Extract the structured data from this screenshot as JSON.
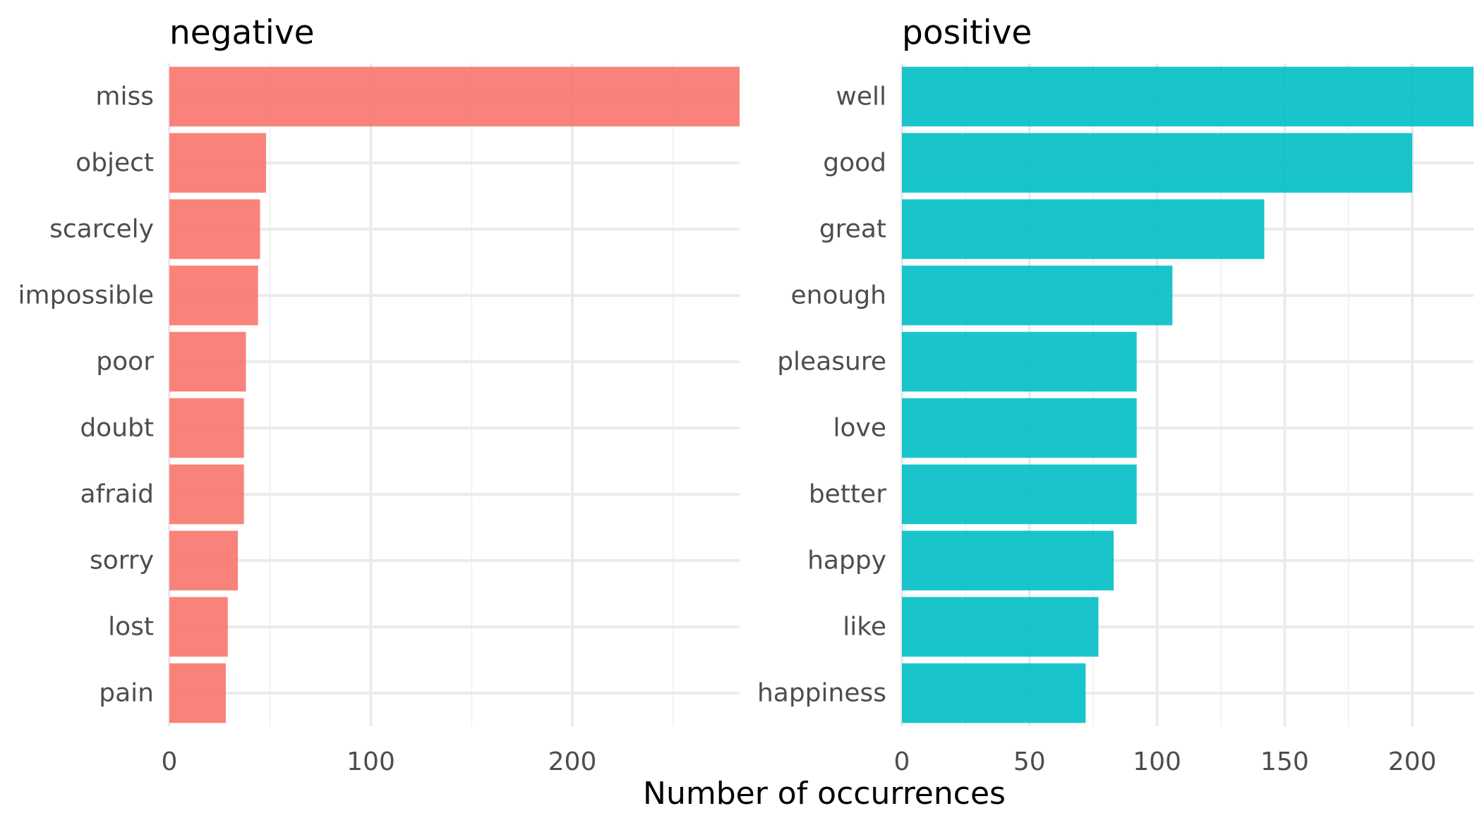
{
  "chart_data": {
    "type": "bar",
    "orientation": "horizontal",
    "grid": true,
    "facets_share_axes": false,
    "xlabel": "Number of occurrences",
    "colors": {
      "negative": "#F8766D",
      "positive": "#00BFC4"
    },
    "panels": [
      {
        "title": "negative",
        "categories": [
          "miss",
          "object",
          "scarcely",
          "impossible",
          "poor",
          "doubt",
          "afraid",
          "sorry",
          "lost",
          "pain"
        ],
        "values": [
          283,
          48,
          45,
          44,
          38,
          37,
          37,
          34,
          29,
          28
        ],
        "xlim": [
          0,
          283
        ],
        "xticks": [
          0,
          100,
          200
        ],
        "xtick_labels": [
          "0",
          "100",
          "200"
        ]
      },
      {
        "title": "positive",
        "categories": [
          "well",
          "good",
          "great",
          "enough",
          "pleasure",
          "love",
          "better",
          "happy",
          "like",
          "happiness"
        ],
        "values": [
          224,
          200,
          142,
          106,
          92,
          92,
          92,
          83,
          77,
          72
        ],
        "xlim": [
          0,
          224
        ],
        "xticks": [
          0,
          50,
          100,
          150,
          200
        ],
        "xtick_labels": [
          "0",
          "50",
          "100",
          "150",
          "200"
        ]
      }
    ]
  }
}
